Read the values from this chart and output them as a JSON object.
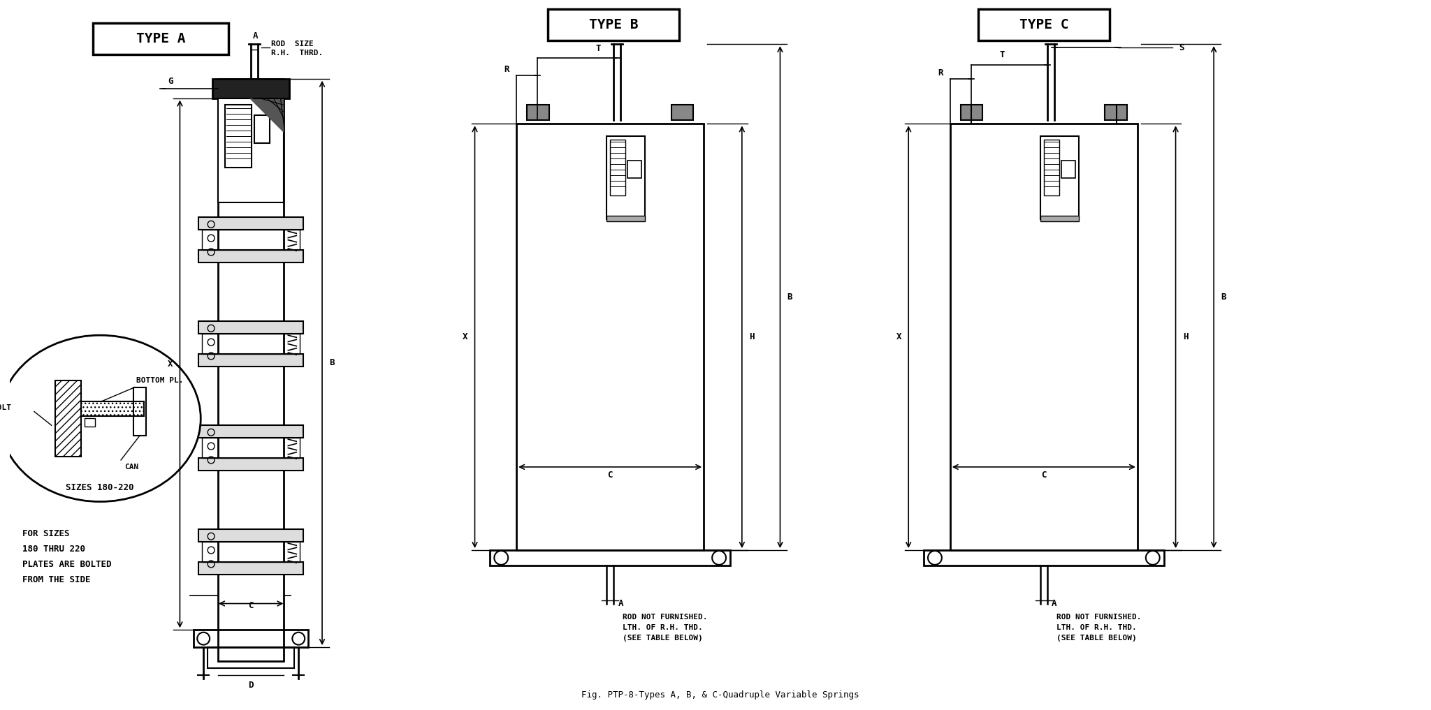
{
  "title": "Fig. PTP-8-Types A, B, & C-Quadruple Variable Springs",
  "bg_color": "#ffffff",
  "line_color": "#000000",
  "type_a_label": "TYPE A",
  "type_b_label": "TYPE B",
  "type_c_label": "TYPE C",
  "note1": "FOR SIZES",
  "note2": "180 THRU 220",
  "note3": "PLATES ARE BOLTED",
  "note4": "FROM THE SIDE",
  "circle_label_bottom_pl": "BOTTOM PL.",
  "circle_label_bolt": "BOLT",
  "circle_label_can": "CAN",
  "circle_label_sizes": "SIZES 180-220",
  "rod_note1": "ROD NOT FURNISHED.",
  "rod_note2": "LTH. OF R.H. THD.",
  "rod_note3": "(SEE TABLE BELOW)",
  "rod_size_line1": "ROD  SIZE",
  "rod_size_line2": "R.H.  THRD."
}
